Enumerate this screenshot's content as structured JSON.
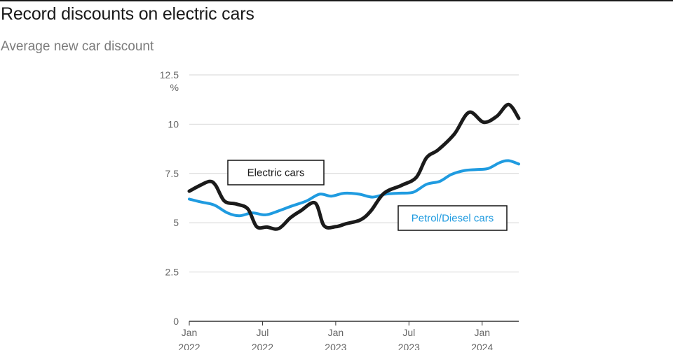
{
  "header": {
    "title": "Record discounts on electric cars",
    "subtitle": "Average new car discount"
  },
  "colors": {
    "electric": "#1b1b1b",
    "petrol": "#1f9be0",
    "grid": "#d6d6d6",
    "axis": "#333333"
  },
  "chart_data": {
    "type": "line",
    "title": "Record discounts on electric cars",
    "subtitle": "Average new car discount",
    "ylabel": "%",
    "xlabel": "",
    "ylim": [
      0,
      12.5
    ],
    "xlim": [
      0,
      22.5
    ],
    "yticks": [
      {
        "value": 0,
        "label": "0"
      },
      {
        "value": 2.5,
        "label": "2.5"
      },
      {
        "value": 5,
        "label": "5"
      },
      {
        "value": 7.5,
        "label": "7.5"
      },
      {
        "value": 10,
        "label": "10"
      },
      {
        "value": 12.5,
        "label": "12.5"
      }
    ],
    "xticks": [
      {
        "value": 0,
        "label": "Jan",
        "year": "2022"
      },
      {
        "value": 5,
        "label": "Jul",
        "year": "2022"
      },
      {
        "value": 10,
        "label": "Jan",
        "year": "2023"
      },
      {
        "value": 15,
        "label": "Jul",
        "year": "2023"
      },
      {
        "value": 20,
        "label": "Jan",
        "year": "2024"
      }
    ],
    "grid": true,
    "series": [
      {
        "name": "Electric cars",
        "label_position": "upper-left",
        "points": [
          [
            0,
            6.6
          ],
          [
            0.75,
            6.9
          ],
          [
            1.4,
            7.1
          ],
          [
            1.8,
            6.9
          ],
          [
            2.4,
            6.1
          ],
          [
            3.2,
            5.95
          ],
          [
            4.0,
            5.7
          ],
          [
            4.6,
            4.8
          ],
          [
            5.3,
            4.78
          ],
          [
            6.1,
            4.7
          ],
          [
            6.9,
            5.25
          ],
          [
            7.6,
            5.6
          ],
          [
            8.6,
            6.0
          ],
          [
            9.2,
            4.85
          ],
          [
            10.0,
            4.8
          ],
          [
            10.7,
            4.95
          ],
          [
            11.7,
            5.15
          ],
          [
            12.4,
            5.6
          ],
          [
            13.3,
            6.5
          ],
          [
            14.5,
            6.9
          ],
          [
            15.5,
            7.3
          ],
          [
            16.2,
            8.3
          ],
          [
            17.0,
            8.7
          ],
          [
            18.1,
            9.5
          ],
          [
            19.1,
            10.6
          ],
          [
            20.1,
            10.1
          ],
          [
            21.0,
            10.4
          ],
          [
            21.8,
            11.0
          ],
          [
            22.5,
            10.3
          ]
        ]
      },
      {
        "name": "Petrol/Diesel cars",
        "label_position": "lower-right",
        "points": [
          [
            0,
            6.2
          ],
          [
            0.8,
            6.05
          ],
          [
            1.7,
            5.9
          ],
          [
            2.6,
            5.5
          ],
          [
            3.4,
            5.35
          ],
          [
            4.3,
            5.5
          ],
          [
            5.2,
            5.4
          ],
          [
            6.1,
            5.6
          ],
          [
            7.0,
            5.85
          ],
          [
            8.0,
            6.1
          ],
          [
            8.9,
            6.45
          ],
          [
            9.7,
            6.35
          ],
          [
            10.6,
            6.5
          ],
          [
            11.6,
            6.45
          ],
          [
            12.5,
            6.3
          ],
          [
            13.4,
            6.45
          ],
          [
            14.3,
            6.5
          ],
          [
            15.3,
            6.55
          ],
          [
            16.2,
            6.95
          ],
          [
            17.1,
            7.1
          ],
          [
            17.9,
            7.45
          ],
          [
            18.8,
            7.65
          ],
          [
            19.6,
            7.7
          ],
          [
            20.4,
            7.75
          ],
          [
            21.2,
            8.05
          ],
          [
            21.8,
            8.15
          ],
          [
            22.5,
            7.98
          ]
        ]
      }
    ]
  }
}
